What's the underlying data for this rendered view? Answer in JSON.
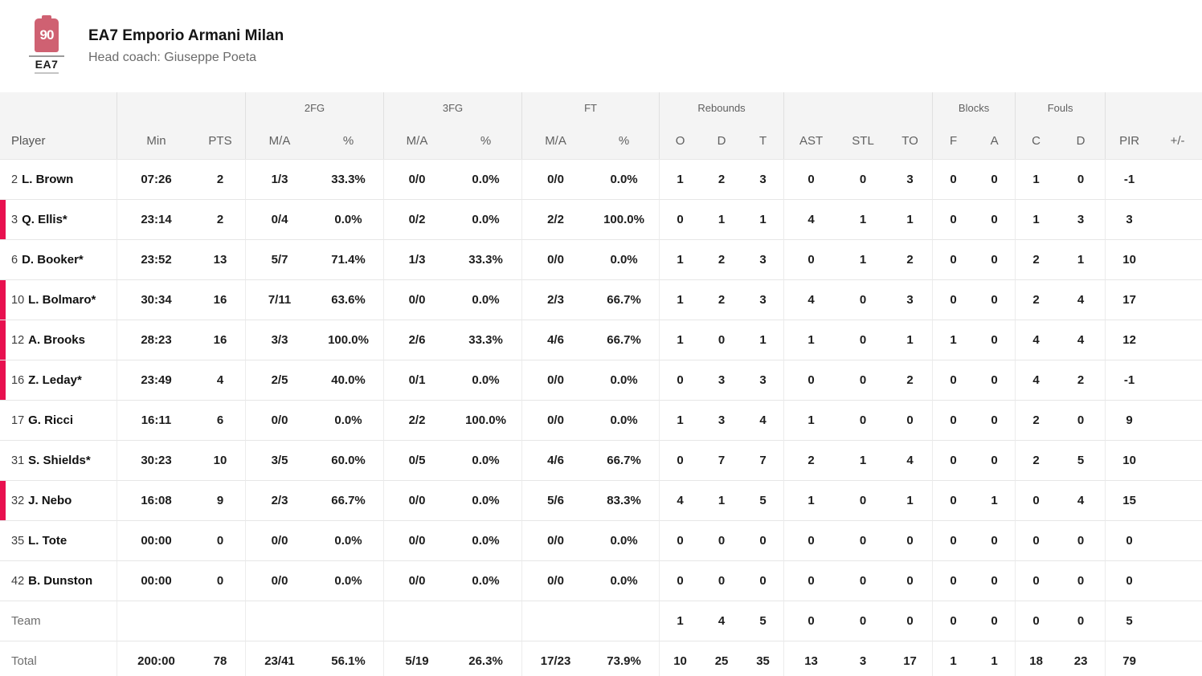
{
  "colors": {
    "accent_pink": "#e8104f"
  },
  "header": {
    "team_name": "EA7 Emporio Armani Milan",
    "coach_line": "Head coach: Giuseppe Poeta",
    "logo": {
      "emblem_text": "90",
      "wordmark": "EA7"
    }
  },
  "table": {
    "groups": [
      {
        "label": "",
        "span": 1
      },
      {
        "label": "",
        "span": 2
      },
      {
        "label": "2FG",
        "span": 2
      },
      {
        "label": "3FG",
        "span": 2
      },
      {
        "label": "FT",
        "span": 2
      },
      {
        "label": "Rebounds",
        "span": 3
      },
      {
        "label": "",
        "span": 3
      },
      {
        "label": "Blocks",
        "span": 2
      },
      {
        "label": "Fouls",
        "span": 2
      },
      {
        "label": "",
        "span": 2
      }
    ],
    "columns": [
      "Player",
      "Min",
      "PTS",
      "M/A",
      "%",
      "M/A",
      "%",
      "M/A",
      "%",
      "O",
      "D",
      "T",
      "AST",
      "STL",
      "TO",
      "F",
      "A",
      "C",
      "D",
      "PIR",
      "+/-"
    ],
    "rows": [
      {
        "num": "2",
        "name": "L. Brown",
        "on_court": false,
        "stats": [
          "07:26",
          "2",
          "1/3",
          "33.3%",
          "0/0",
          "0.0%",
          "0/0",
          "0.0%",
          "1",
          "2",
          "3",
          "0",
          "0",
          "3",
          "0",
          "0",
          "1",
          "0",
          "-1",
          ""
        ]
      },
      {
        "num": "3",
        "name": "Q. Ellis*",
        "on_court": true,
        "stats": [
          "23:14",
          "2",
          "0/4",
          "0.0%",
          "0/2",
          "0.0%",
          "2/2",
          "100.0%",
          "0",
          "1",
          "1",
          "4",
          "1",
          "1",
          "0",
          "0",
          "1",
          "3",
          "3",
          ""
        ]
      },
      {
        "num": "6",
        "name": "D. Booker*",
        "on_court": false,
        "stats": [
          "23:52",
          "13",
          "5/7",
          "71.4%",
          "1/3",
          "33.3%",
          "0/0",
          "0.0%",
          "1",
          "2",
          "3",
          "0",
          "1",
          "2",
          "0",
          "0",
          "2",
          "1",
          "10",
          ""
        ]
      },
      {
        "num": "10",
        "name": "L. Bolmaro*",
        "on_court": true,
        "stats": [
          "30:34",
          "16",
          "7/11",
          "63.6%",
          "0/0",
          "0.0%",
          "2/3",
          "66.7%",
          "1",
          "2",
          "3",
          "4",
          "0",
          "3",
          "0",
          "0",
          "2",
          "4",
          "17",
          ""
        ]
      },
      {
        "num": "12",
        "name": "A. Brooks",
        "on_court": true,
        "stats": [
          "28:23",
          "16",
          "3/3",
          "100.0%",
          "2/6",
          "33.3%",
          "4/6",
          "66.7%",
          "1",
          "0",
          "1",
          "1",
          "0",
          "1",
          "1",
          "0",
          "4",
          "4",
          "12",
          ""
        ]
      },
      {
        "num": "16",
        "name": "Z. Leday*",
        "on_court": true,
        "stats": [
          "23:49",
          "4",
          "2/5",
          "40.0%",
          "0/1",
          "0.0%",
          "0/0",
          "0.0%",
          "0",
          "3",
          "3",
          "0",
          "0",
          "2",
          "0",
          "0",
          "4",
          "2",
          "-1",
          ""
        ]
      },
      {
        "num": "17",
        "name": "G. Ricci",
        "on_court": false,
        "stats": [
          "16:11",
          "6",
          "0/0",
          "0.0%",
          "2/2",
          "100.0%",
          "0/0",
          "0.0%",
          "1",
          "3",
          "4",
          "1",
          "0",
          "0",
          "0",
          "0",
          "2",
          "0",
          "9",
          ""
        ]
      },
      {
        "num": "31",
        "name": "S. Shields*",
        "on_court": false,
        "stats": [
          "30:23",
          "10",
          "3/5",
          "60.0%",
          "0/5",
          "0.0%",
          "4/6",
          "66.7%",
          "0",
          "7",
          "7",
          "2",
          "1",
          "4",
          "0",
          "0",
          "2",
          "5",
          "10",
          ""
        ]
      },
      {
        "num": "32",
        "name": "J. Nebo",
        "on_court": true,
        "stats": [
          "16:08",
          "9",
          "2/3",
          "66.7%",
          "0/0",
          "0.0%",
          "5/6",
          "83.3%",
          "4",
          "1",
          "5",
          "1",
          "0",
          "1",
          "0",
          "1",
          "0",
          "4",
          "15",
          ""
        ]
      },
      {
        "num": "35",
        "name": "L. Tote",
        "on_court": false,
        "stats": [
          "00:00",
          "0",
          "0/0",
          "0.0%",
          "0/0",
          "0.0%",
          "0/0",
          "0.0%",
          "0",
          "0",
          "0",
          "0",
          "0",
          "0",
          "0",
          "0",
          "0",
          "0",
          "0",
          ""
        ]
      },
      {
        "num": "42",
        "name": "B. Dunston",
        "on_court": false,
        "stats": [
          "00:00",
          "0",
          "0/0",
          "0.0%",
          "0/0",
          "0.0%",
          "0/0",
          "0.0%",
          "0",
          "0",
          "0",
          "0",
          "0",
          "0",
          "0",
          "0",
          "0",
          "0",
          "0",
          ""
        ]
      }
    ],
    "team_row": {
      "label": "Team",
      "stats": [
        "",
        "",
        "",
        "",
        "",
        "",
        "",
        "",
        "1",
        "4",
        "5",
        "0",
        "0",
        "0",
        "0",
        "0",
        "0",
        "0",
        "5",
        ""
      ]
    },
    "total_row": {
      "label": "Total",
      "stats": [
        "200:00",
        "78",
        "23/41",
        "56.1%",
        "5/19",
        "26.3%",
        "17/23",
        "73.9%",
        "10",
        "25",
        "35",
        "13",
        "3",
        "17",
        "1",
        "1",
        "18",
        "23",
        "79",
        ""
      ]
    }
  }
}
